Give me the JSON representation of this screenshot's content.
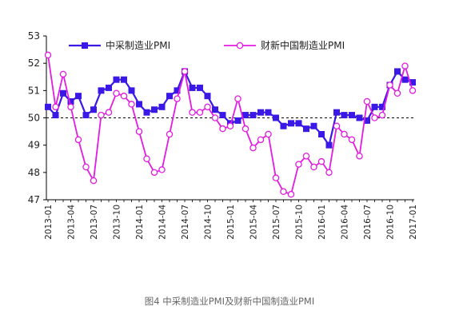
{
  "caption": "图4 中采制造业PMI及财新中国制造业PMI",
  "chart_data": {
    "type": "line",
    "ylim": [
      47,
      53
    ],
    "yticks": [
      47,
      48,
      49,
      50,
      51,
      52,
      53
    ],
    "reference_line": 50,
    "grid": false,
    "legend_position": "top",
    "x": [
      "2013-01",
      "2013-02",
      "2013-03",
      "2013-04",
      "2013-05",
      "2013-06",
      "2013-07",
      "2013-08",
      "2013-09",
      "2013-10",
      "2013-11",
      "2013-12",
      "2014-01",
      "2014-02",
      "2014-03",
      "2014-04",
      "2014-05",
      "2014-06",
      "2014-07",
      "2014-08",
      "2014-09",
      "2014-10",
      "2014-11",
      "2014-12",
      "2015-01",
      "2015-02",
      "2015-03",
      "2015-04",
      "2015-05",
      "2015-06",
      "2015-07",
      "2015-08",
      "2015-09",
      "2015-10",
      "2015-11",
      "2015-12",
      "2016-01",
      "2016-02",
      "2016-03",
      "2016-04",
      "2016-05",
      "2016-06",
      "2016-07",
      "2016-08",
      "2016-09",
      "2016-10",
      "2016-11",
      "2016-12",
      "2017-01"
    ],
    "xtick_labels": [
      "2013-01",
      "2013-04",
      "2013-07",
      "2013-10",
      "2014-01",
      "2014-04",
      "2014-07",
      "2014-10",
      "2015-01",
      "2015-04",
      "2015-07",
      "2015-10",
      "2016-01",
      "2016-04",
      "2016-07",
      "2016-10",
      "2017-01"
    ],
    "series": [
      {
        "name": "中采制造业PMI",
        "color": "#3a18e6",
        "marker": "filled-square",
        "values": [
          50.4,
          50.1,
          50.9,
          50.6,
          50.8,
          50.1,
          50.3,
          51.0,
          51.1,
          51.4,
          51.4,
          51.0,
          50.5,
          50.2,
          50.3,
          50.4,
          50.8,
          51.0,
          51.7,
          51.1,
          51.1,
          50.8,
          50.3,
          50.1,
          49.8,
          49.9,
          50.1,
          50.1,
          50.2,
          50.2,
          50.0,
          49.7,
          49.8,
          49.8,
          49.6,
          49.7,
          49.4,
          49.0,
          50.2,
          50.1,
          50.1,
          50.0,
          49.9,
          50.4,
          50.4,
          51.2,
          51.7,
          51.4,
          51.3
        ]
      },
      {
        "name": "财新中国制造业PMI",
        "color": "#e21ce0",
        "marker": "open-circle",
        "values": [
          52.3,
          50.4,
          51.6,
          50.4,
          49.2,
          48.2,
          47.7,
          50.1,
          50.2,
          50.9,
          50.8,
          50.5,
          49.5,
          48.5,
          48.0,
          48.1,
          49.4,
          50.7,
          51.7,
          50.2,
          50.2,
          50.4,
          50.0,
          49.6,
          49.7,
          50.7,
          49.6,
          48.9,
          49.2,
          49.4,
          47.8,
          47.3,
          47.2,
          48.3,
          48.6,
          48.2,
          48.4,
          48.0,
          49.7,
          49.4,
          49.2,
          48.6,
          50.6,
          50.0,
          50.1,
          51.2,
          50.9,
          51.9,
          51.0
        ]
      }
    ]
  }
}
